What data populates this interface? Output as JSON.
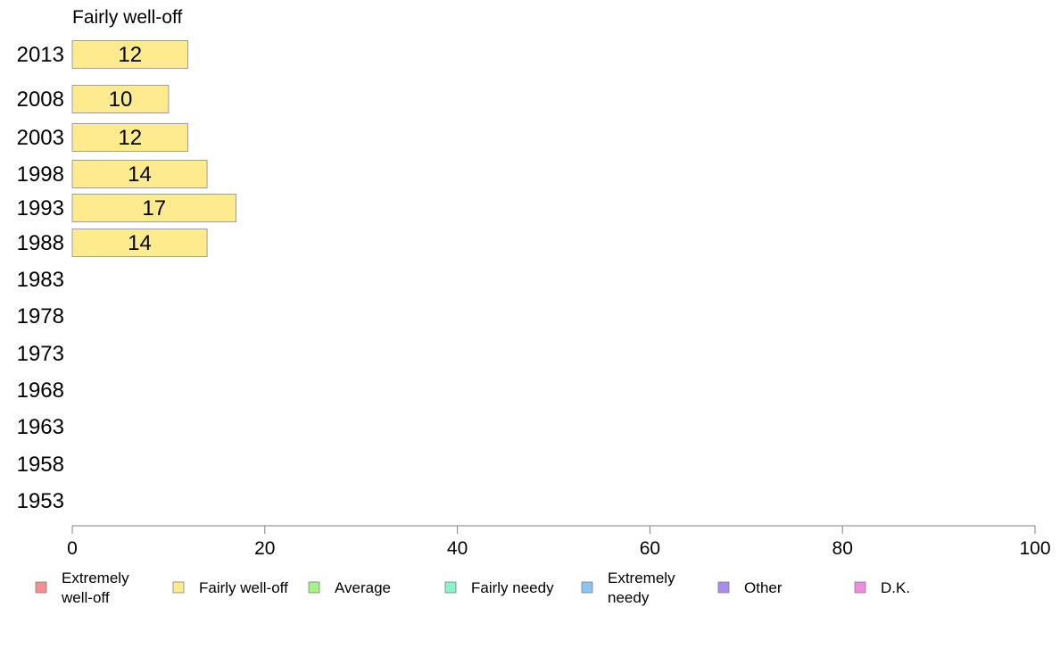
{
  "chart_data": {
    "type": "bar",
    "orientation": "horizontal",
    "title": "Fairly well-off",
    "xlim": [
      0,
      100
    ],
    "xticks": [
      0,
      20,
      40,
      60,
      80,
      100
    ],
    "grid": false,
    "categories": [
      "2013",
      "2008",
      "2003",
      "1998",
      "1993",
      "1988",
      "1983",
      "1978",
      "1973",
      "1968",
      "1963",
      "1958",
      "1953"
    ],
    "series": [
      {
        "name": "Fairly well-off",
        "color": "#fdeb8d",
        "values": [
          12,
          10,
          12,
          14,
          17,
          14,
          null,
          null,
          null,
          null,
          null,
          null,
          null
        ]
      }
    ],
    "legend": {
      "position": "bottom",
      "items": [
        {
          "label": "Extremely well-off",
          "lines": [
            "Extremely",
            "well-off"
          ],
          "color": "#f58f8f"
        },
        {
          "label": "Fairly well-off",
          "lines": [
            "Fairly well-off"
          ],
          "color": "#fdeb8d"
        },
        {
          "label": "Average",
          "lines": [
            "Average"
          ],
          "color": "#a5f28a"
        },
        {
          "label": "Fairly needy",
          "lines": [
            "Fairly needy"
          ],
          "color": "#86f5c8"
        },
        {
          "label": "Extremely needy",
          "lines": [
            "Extremely",
            "needy"
          ],
          "color": "#8cc4f2"
        },
        {
          "label": "Other",
          "lines": [
            "Other"
          ],
          "color": "#a88af2"
        },
        {
          "label": "D.K.",
          "lines": [
            "D.K."
          ],
          "color": "#f28ae2"
        }
      ]
    }
  }
}
